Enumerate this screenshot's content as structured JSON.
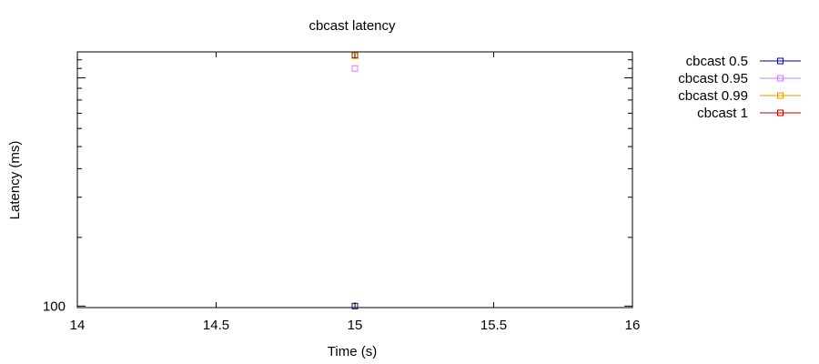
{
  "chart_data": {
    "type": "scatter",
    "title": "cbcast latency",
    "xlabel": "Time (s)",
    "ylabel": "Latency (ms)",
    "xlim": [
      14,
      16
    ],
    "ylim": [
      98.5,
      1300
    ],
    "yscale": "log",
    "grid": false,
    "legend_position": "top-right outside",
    "x_ticks": [
      "14",
      "14.5",
      "15",
      "15.5",
      "16"
    ],
    "y_ticks": [
      "100"
    ],
    "series": [
      {
        "name": "cbcast 0.5",
        "color": "#0000a0",
        "marker": "square",
        "x": [
          15
        ],
        "y": [
          100
        ]
      },
      {
        "name": "cbcast 0.95",
        "color": "#c080ff",
        "marker": "square",
        "x": [
          15
        ],
        "y": [
          1100
        ]
      },
      {
        "name": "cbcast 0.99",
        "color": "#d8a000",
        "marker": "square",
        "x": [
          15
        ],
        "y": [
          1250
        ]
      },
      {
        "name": "cbcast 1",
        "color": "#c00000",
        "marker": "square",
        "x": [
          15
        ],
        "y": [
          1260
        ]
      }
    ]
  }
}
